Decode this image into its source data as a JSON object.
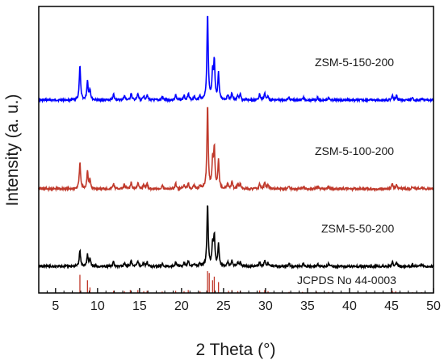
{
  "chart_data": {
    "type": "line",
    "title": "",
    "xlabel": "2 Theta (°)",
    "ylabel": "Intensity (a. u.)",
    "xlim": [
      3,
      50
    ],
    "x_ticks": [
      "5",
      "10",
      "15",
      "20",
      "25",
      "30",
      "35",
      "40",
      "45",
      "50"
    ],
    "y_ticks": [],
    "grid": false,
    "legend": "inline labels to the right of each pattern",
    "series": [
      {
        "name": "ZSM-5-150-200",
        "color": "#0000ff",
        "baseline": 0,
        "offset": 2.0,
        "peaks": [
          {
            "x": 7.9,
            "y": 0.4
          },
          {
            "x": 8.8,
            "y": 0.22
          },
          {
            "x": 9.1,
            "y": 0.12
          },
          {
            "x": 11.9,
            "y": 0.07
          },
          {
            "x": 13.2,
            "y": 0.05
          },
          {
            "x": 14.0,
            "y": 0.08
          },
          {
            "x": 14.8,
            "y": 0.07
          },
          {
            "x": 15.5,
            "y": 0.05
          },
          {
            "x": 15.9,
            "y": 0.06
          },
          {
            "x": 17.7,
            "y": 0.04
          },
          {
            "x": 19.3,
            "y": 0.06
          },
          {
            "x": 20.3,
            "y": 0.05
          },
          {
            "x": 20.8,
            "y": 0.08
          },
          {
            "x": 21.5,
            "y": 0.04
          },
          {
            "x": 22.2,
            "y": 0.04
          },
          {
            "x": 23.1,
            "y": 1.0
          },
          {
            "x": 23.7,
            "y": 0.3
          },
          {
            "x": 23.9,
            "y": 0.42
          },
          {
            "x": 24.4,
            "y": 0.3
          },
          {
            "x": 25.5,
            "y": 0.06
          },
          {
            "x": 26.0,
            "y": 0.08
          },
          {
            "x": 26.7,
            "y": 0.05
          },
          {
            "x": 27.0,
            "y": 0.06
          },
          {
            "x": 29.3,
            "y": 0.07
          },
          {
            "x": 29.9,
            "y": 0.08
          },
          {
            "x": 30.3,
            "y": 0.05
          },
          {
            "x": 32.8,
            "y": 0.03
          },
          {
            "x": 34.5,
            "y": 0.03
          },
          {
            "x": 36.2,
            "y": 0.03
          },
          {
            "x": 37.5,
            "y": 0.03
          },
          {
            "x": 45.1,
            "y": 0.06
          },
          {
            "x": 45.6,
            "y": 0.05
          },
          {
            "x": 47.5,
            "y": 0.02
          },
          {
            "x": 48.6,
            "y": 0.02
          }
        ]
      },
      {
        "name": "ZSM-5-100-200",
        "color": "#c0392b",
        "baseline": 0,
        "offset": 1.0,
        "peaks": [
          {
            "x": 7.9,
            "y": 0.3
          },
          {
            "x": 8.8,
            "y": 0.2
          },
          {
            "x": 9.1,
            "y": 0.1
          },
          {
            "x": 11.9,
            "y": 0.06
          },
          {
            "x": 13.2,
            "y": 0.05
          },
          {
            "x": 14.0,
            "y": 0.07
          },
          {
            "x": 14.8,
            "y": 0.07
          },
          {
            "x": 15.5,
            "y": 0.05
          },
          {
            "x": 15.9,
            "y": 0.06
          },
          {
            "x": 17.7,
            "y": 0.04
          },
          {
            "x": 19.3,
            "y": 0.06
          },
          {
            "x": 20.3,
            "y": 0.05
          },
          {
            "x": 20.8,
            "y": 0.07
          },
          {
            "x": 21.5,
            "y": 0.04
          },
          {
            "x": 22.2,
            "y": 0.04
          },
          {
            "x": 23.1,
            "y": 0.95
          },
          {
            "x": 23.7,
            "y": 0.3
          },
          {
            "x": 23.9,
            "y": 0.45
          },
          {
            "x": 24.4,
            "y": 0.32
          },
          {
            "x": 25.5,
            "y": 0.06
          },
          {
            "x": 26.0,
            "y": 0.08
          },
          {
            "x": 26.7,
            "y": 0.05
          },
          {
            "x": 27.0,
            "y": 0.06
          },
          {
            "x": 29.3,
            "y": 0.06
          },
          {
            "x": 29.9,
            "y": 0.08
          },
          {
            "x": 30.3,
            "y": 0.05
          },
          {
            "x": 32.8,
            "y": 0.03
          },
          {
            "x": 34.5,
            "y": 0.03
          },
          {
            "x": 36.2,
            "y": 0.03
          },
          {
            "x": 37.5,
            "y": 0.03
          },
          {
            "x": 45.1,
            "y": 0.06
          },
          {
            "x": 45.6,
            "y": 0.05
          },
          {
            "x": 47.5,
            "y": 0.02
          },
          {
            "x": 48.6,
            "y": 0.02
          }
        ]
      },
      {
        "name": "ZSM-5-50-200",
        "color": "#000000",
        "baseline": 0,
        "offset": 0.0,
        "peaks": [
          {
            "x": 7.9,
            "y": 0.18
          },
          {
            "x": 8.8,
            "y": 0.13
          },
          {
            "x": 9.1,
            "y": 0.08
          },
          {
            "x": 11.9,
            "y": 0.05
          },
          {
            "x": 13.2,
            "y": 0.04
          },
          {
            "x": 14.0,
            "y": 0.06
          },
          {
            "x": 14.8,
            "y": 0.06
          },
          {
            "x": 15.5,
            "y": 0.04
          },
          {
            "x": 15.9,
            "y": 0.05
          },
          {
            "x": 17.7,
            "y": 0.03
          },
          {
            "x": 19.3,
            "y": 0.05
          },
          {
            "x": 20.3,
            "y": 0.04
          },
          {
            "x": 20.8,
            "y": 0.06
          },
          {
            "x": 21.5,
            "y": 0.03
          },
          {
            "x": 22.2,
            "y": 0.03
          },
          {
            "x": 23.1,
            "y": 0.7
          },
          {
            "x": 23.7,
            "y": 0.25
          },
          {
            "x": 23.9,
            "y": 0.33
          },
          {
            "x": 24.4,
            "y": 0.25
          },
          {
            "x": 25.5,
            "y": 0.05
          },
          {
            "x": 26.0,
            "y": 0.06
          },
          {
            "x": 26.7,
            "y": 0.04
          },
          {
            "x": 27.0,
            "y": 0.05
          },
          {
            "x": 29.3,
            "y": 0.05
          },
          {
            "x": 29.9,
            "y": 0.06
          },
          {
            "x": 30.3,
            "y": 0.04
          },
          {
            "x": 32.8,
            "y": 0.03
          },
          {
            "x": 34.5,
            "y": 0.03
          },
          {
            "x": 36.2,
            "y": 0.03
          },
          {
            "x": 37.5,
            "y": 0.03
          },
          {
            "x": 45.1,
            "y": 0.05
          },
          {
            "x": 45.6,
            "y": 0.04
          },
          {
            "x": 47.5,
            "y": 0.02
          },
          {
            "x": 48.6,
            "y": 0.02
          }
        ]
      }
    ],
    "reference": {
      "name": "JCPDS No 44-0003",
      "color": "#c0392b",
      "sticks": [
        {
          "x": 7.9,
          "y": 0.5
        },
        {
          "x": 8.8,
          "y": 0.35
        },
        {
          "x": 9.1,
          "y": 0.15
        },
        {
          "x": 11.9,
          "y": 0.06
        },
        {
          "x": 13.2,
          "y": 0.05
        },
        {
          "x": 13.9,
          "y": 0.08
        },
        {
          "x": 14.8,
          "y": 0.08
        },
        {
          "x": 15.5,
          "y": 0.05
        },
        {
          "x": 15.9,
          "y": 0.06
        },
        {
          "x": 17.7,
          "y": 0.04
        },
        {
          "x": 19.3,
          "y": 0.06
        },
        {
          "x": 20.3,
          "y": 0.05
        },
        {
          "x": 20.8,
          "y": 0.08
        },
        {
          "x": 22.2,
          "y": 0.05
        },
        {
          "x": 23.1,
          "y": 0.6
        },
        {
          "x": 23.3,
          "y": 0.55
        },
        {
          "x": 23.7,
          "y": 0.35
        },
        {
          "x": 23.9,
          "y": 0.45
        },
        {
          "x": 24.4,
          "y": 0.3
        },
        {
          "x": 25.6,
          "y": 0.06
        },
        {
          "x": 26.0,
          "y": 0.08
        },
        {
          "x": 26.7,
          "y": 0.05
        },
        {
          "x": 27.0,
          "y": 0.06
        },
        {
          "x": 29.3,
          "y": 0.07
        },
        {
          "x": 29.9,
          "y": 0.08
        },
        {
          "x": 30.3,
          "y": 0.05
        },
        {
          "x": 32.8,
          "y": 0.03
        },
        {
          "x": 34.4,
          "y": 0.03
        },
        {
          "x": 36.1,
          "y": 0.03
        },
        {
          "x": 37.5,
          "y": 0.03
        },
        {
          "x": 45.1,
          "y": 0.06
        },
        {
          "x": 45.5,
          "y": 0.05
        },
        {
          "x": 47.5,
          "y": 0.02
        },
        {
          "x": 48.6,
          "y": 0.02
        }
      ]
    }
  }
}
